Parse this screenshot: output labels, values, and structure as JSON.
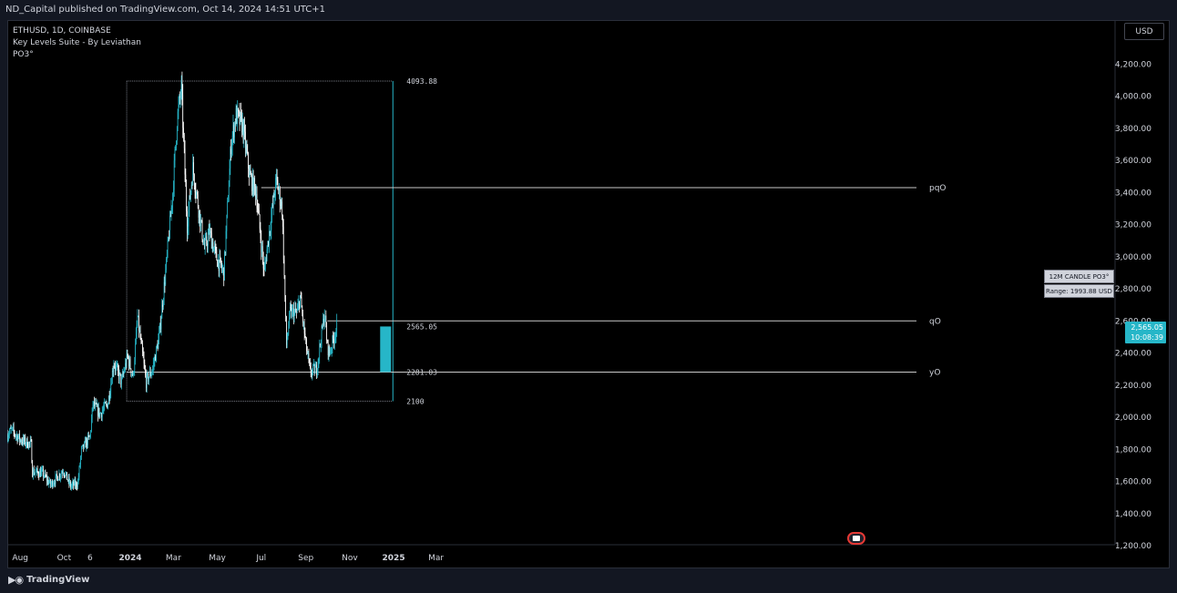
{
  "header": {
    "published": "ND_Capital published on TradingView.com, Oct 14, 2024 14:51 UTC+1"
  },
  "legend": {
    "symbol": "ETHUSD, 1D, COINBASE",
    "indicator": "Key Levels Suite - By Leviathan",
    "sub": "PO3°"
  },
  "currency": "USD",
  "info": {
    "title": "12M CANDLE PO3°",
    "range": "Range: 1993.88 USD"
  },
  "price_tag": {
    "price": "2,565.05",
    "countdown": "10:08:39"
  },
  "branding": {
    "name": "TradingView"
  },
  "colors": {
    "up": "#26b6c8",
    "down": "#ffffff",
    "level": "#c8c8c8",
    "box": "#26b6c8",
    "grid": "#0b0b0b"
  },
  "icons": {
    "logo": "tradingview-logo-icon",
    "flag": "us-flag-icon"
  },
  "chart_data": {
    "type": "candlestick",
    "symbol": "ETHUSD",
    "timeframe": "1D",
    "ylim": [
      1200,
      4400
    ],
    "y_ticks": [
      "4,200.00",
      "4,000.00",
      "3,800.00",
      "3,600.00",
      "3,400.00",
      "3,200.00",
      "3,000.00",
      "2,800.00",
      "2,600.00",
      "2,400.00",
      "2,200.00",
      "2,000.00",
      "1,800.00",
      "1,600.00",
      "1,400.00",
      "1,200.00"
    ],
    "y_tick_values": [
      4200,
      4000,
      3800,
      3600,
      3400,
      3200,
      3000,
      2800,
      2600,
      2400,
      2200,
      2000,
      1800,
      1600,
      1400,
      1200
    ],
    "x_ticks": [
      "Aug",
      "Oct",
      "6",
      "2024",
      "Mar",
      "May",
      "Jul",
      "Sep",
      "Nov",
      "2025",
      "Mar"
    ],
    "x_tick_dates": [
      "2023-08-01",
      "2023-10-01",
      "2023-11-06",
      "2024-01-01",
      "2024-03-01",
      "2024-05-01",
      "2024-07-01",
      "2024-09-01",
      "2024-11-01",
      "2025-01-01",
      "2025-03-01"
    ],
    "x_bold": [
      false,
      false,
      false,
      true,
      false,
      false,
      false,
      false,
      false,
      true,
      false
    ],
    "date_range": [
      "2023-07-14",
      "2024-10-14"
    ],
    "anchors": [
      [
        "2023-07-14",
        1890
      ],
      [
        "2023-07-20",
        1920
      ],
      [
        "2023-08-01",
        1860
      ],
      [
        "2023-08-16",
        1830
      ],
      [
        "2023-08-18",
        1660
      ],
      [
        "2023-09-01",
        1650
      ],
      [
        "2023-09-12",
        1580
      ],
      [
        "2023-09-30",
        1670
      ],
      [
        "2023-10-10",
        1570
      ],
      [
        "2023-10-20",
        1590
      ],
      [
        "2023-10-25",
        1790
      ],
      [
        "2023-11-06",
        1880
      ],
      [
        "2023-11-10",
        2080
      ],
      [
        "2023-11-20",
        2020
      ],
      [
        "2023-12-01",
        2090
      ],
      [
        "2023-12-09",
        2340
      ],
      [
        "2023-12-20",
        2220
      ],
      [
        "2023-12-28",
        2380
      ],
      [
        "2024-01-05",
        2250
      ],
      [
        "2024-01-11",
        2620
      ],
      [
        "2024-01-23",
        2220
      ],
      [
        "2024-02-01",
        2300
      ],
      [
        "2024-02-10",
        2500
      ],
      [
        "2024-02-20",
        2950
      ],
      [
        "2024-02-29",
        3400
      ],
      [
        "2024-03-06",
        3850
      ],
      [
        "2024-03-12",
        4050
      ],
      [
        "2024-03-20",
        3200
      ],
      [
        "2024-03-28",
        3550
      ],
      [
        "2024-04-05",
        3300
      ],
      [
        "2024-04-13",
        3050
      ],
      [
        "2024-04-20",
        3150
      ],
      [
        "2024-04-30",
        2990
      ],
      [
        "2024-05-10",
        2900
      ],
      [
        "2024-05-20",
        3700
      ],
      [
        "2024-05-27",
        3880
      ],
      [
        "2024-06-05",
        3820
      ],
      [
        "2024-06-15",
        3500
      ],
      [
        "2024-06-24",
        3400
      ],
      [
        "2024-07-05",
        2900
      ],
      [
        "2024-07-12",
        3150
      ],
      [
        "2024-07-22",
        3480
      ],
      [
        "2024-07-30",
        3300
      ],
      [
        "2024-08-05",
        2450
      ],
      [
        "2024-08-10",
        2650
      ],
      [
        "2024-08-20",
        2650
      ],
      [
        "2024-08-24",
        2750
      ],
      [
        "2024-09-01",
        2450
      ],
      [
        "2024-09-07",
        2280
      ],
      [
        "2024-09-16",
        2300
      ],
      [
        "2024-09-27",
        2650
      ],
      [
        "2024-10-01",
        2440
      ],
      [
        "2024-10-04",
        2400
      ],
      [
        "2024-10-14",
        2565
      ]
    ],
    "levels": [
      {
        "label": "pqO",
        "value": 3430,
        "start": "2024-07-01"
      },
      {
        "label": "qO",
        "value": 2600,
        "start": "2024-10-01"
      },
      {
        "label": "yO",
        "value": 2281.03,
        "start": "2023-12-27"
      }
    ],
    "range_box": {
      "high": 4093.88,
      "low": 2100,
      "start": "2023-12-27",
      "end": "2024-12-31"
    },
    "box_labels": {
      "high": "4093.88",
      "low": "2100",
      "current": "2565.05",
      "open": "2281.03"
    },
    "po3_candle": {
      "open": 2281.03,
      "close": 2565.05,
      "x": "2024-12-31"
    }
  }
}
